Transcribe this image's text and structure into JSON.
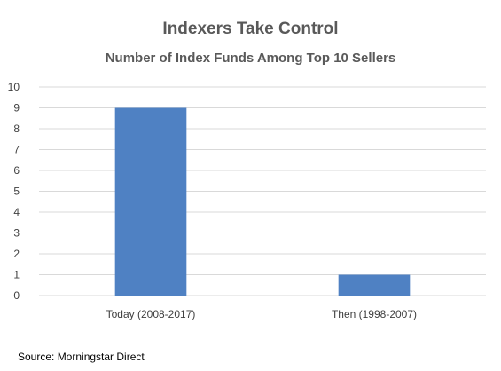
{
  "chart_data": {
    "type": "bar",
    "title": "Indexers Take Control",
    "subtitle": "Number of Index Funds Among Top 10 Sellers",
    "categories": [
      "Today (2008-2017)",
      "Then (1998-2007)"
    ],
    "values": [
      9,
      1
    ],
    "ylim": [
      0,
      10
    ],
    "yticks": [
      "0",
      "1",
      "2",
      "3",
      "4",
      "5",
      "6",
      "7",
      "8",
      "9",
      "10"
    ],
    "xlabel": "",
    "ylabel": "",
    "grid": true,
    "legend": "none",
    "bar_color": "#4f81c3",
    "gridline_color": "#d9d9d9"
  },
  "source": "Source: Morningstar Direct"
}
